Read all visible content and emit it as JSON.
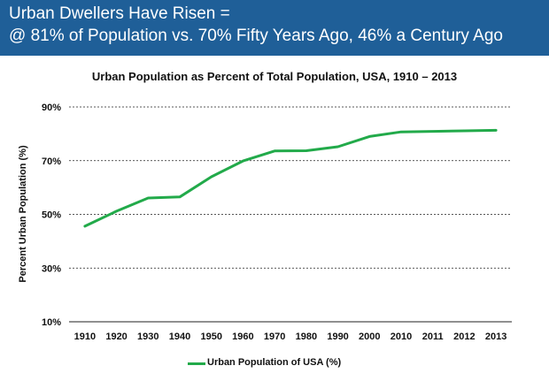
{
  "header": {
    "line1": "Urban Dwellers Have Risen =",
    "line2": "@ 81% of Population vs. 70% Fifty Years Ago, 46% a Century Ago"
  },
  "colors": {
    "header_bg": "#1f5f98",
    "line": "#22aa4a"
  },
  "chart_data": {
    "type": "line",
    "title": "Urban Population as Percent of Total Population, USA, 1910 – 2013",
    "xlabel": "",
    "ylabel": "Percent Urban Population (%)",
    "categories": [
      "1910",
      "1920",
      "1930",
      "1940",
      "1950",
      "1960",
      "1970",
      "1980",
      "1990",
      "2000",
      "2010",
      "2011",
      "2012",
      "2013"
    ],
    "series": [
      {
        "name": "Urban Population of USA (%)",
        "values": [
          45.6,
          51.2,
          56.1,
          56.5,
          64.0,
          69.9,
          73.6,
          73.7,
          75.2,
          79.0,
          80.7,
          80.9,
          81.1,
          81.3
        ]
      }
    ],
    "yticks": [
      "10%",
      "30%",
      "50%",
      "70%",
      "90%"
    ],
    "ylim": [
      10,
      90
    ],
    "grid": true,
    "legend": "bottom"
  }
}
